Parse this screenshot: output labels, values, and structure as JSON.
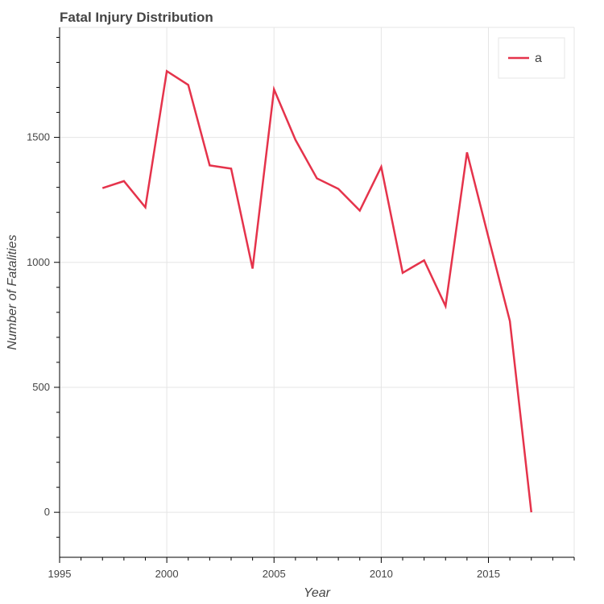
{
  "chart_data": {
    "type": "line",
    "title": "Fatal Injury Distribution",
    "xlabel": "Year",
    "ylabel": "Number of Fatalities",
    "xlim": [
      1995,
      2019
    ],
    "ylim": [
      -180,
      1940
    ],
    "x_major_ticks": [
      1995,
      2000,
      2005,
      2010,
      2015
    ],
    "y_major_ticks": [
      0,
      500,
      1000,
      1500
    ],
    "grid": true,
    "legend": {
      "placement": "top-right"
    },
    "series": [
      {
        "name": "a",
        "color": "#e5334b",
        "x": [
          1997,
          1998,
          1999,
          2000,
          2001,
          2002,
          2003,
          2004,
          2005,
          2006,
          2007,
          2008,
          2009,
          2010,
          2011,
          2012,
          2013,
          2014,
          2015,
          2016,
          2017
        ],
        "y": [
          1297,
          1325,
          1220,
          1765,
          1710,
          1388,
          1375,
          975,
          1692,
          1490,
          1336,
          1294,
          1207,
          1382,
          958,
          1008,
          825,
          1440,
          1100,
          765,
          0
        ]
      }
    ]
  }
}
